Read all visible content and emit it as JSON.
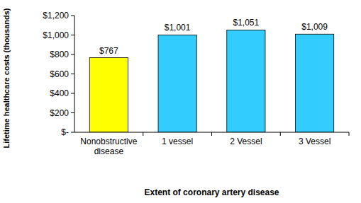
{
  "chart_data": {
    "type": "bar",
    "x_label": "Extent of coronary artery disease",
    "y_label": "Lifetime healthcare costs (thousands)",
    "categories": [
      "Nonobstructive disease",
      "1 vessel",
      "2 Vessel",
      "3 Vessel"
    ],
    "values": [
      767,
      1001,
      1051,
      1009
    ],
    "value_labels": [
      "$767",
      "$1,001",
      "$1,051",
      "$1,009"
    ],
    "colors": [
      "#ffff00",
      "#33ccff",
      "#33ccff",
      "#33ccff"
    ],
    "data_labels": true,
    "grid": false,
    "ylim": [
      0,
      1200
    ],
    "yticks": [
      {
        "value": 0,
        "label": "$-"
      },
      {
        "value": 200,
        "label": "$200"
      },
      {
        "value": 400,
        "label": "$400"
      },
      {
        "value": 600,
        "label": "$600"
      },
      {
        "value": 800,
        "label": "$800"
      },
      {
        "value": 1000,
        "label": "$1,000"
      },
      {
        "value": 1200,
        "label": "$1,200"
      }
    ]
  }
}
